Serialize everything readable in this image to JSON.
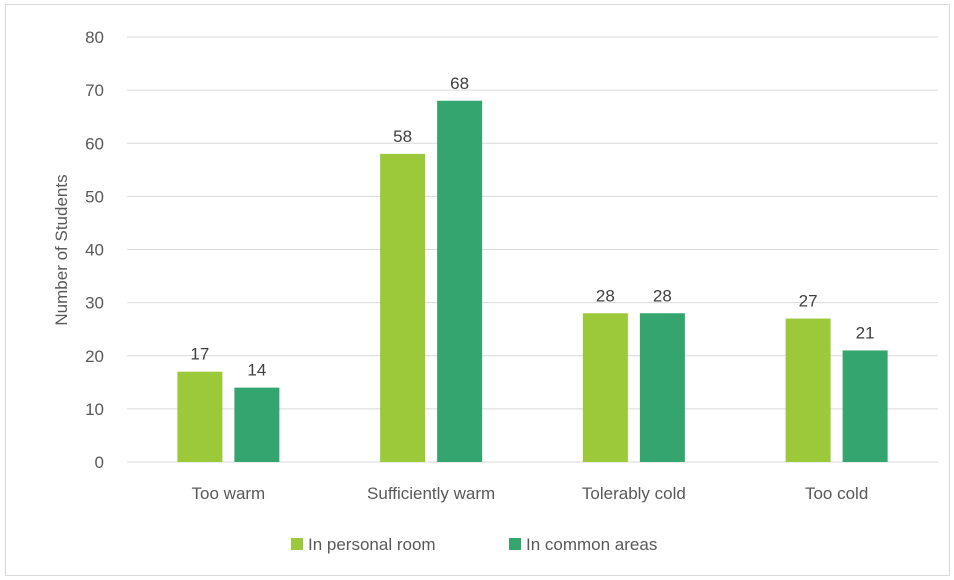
{
  "chart_data": {
    "type": "bar",
    "title": "",
    "xlabel": "",
    "ylabel": "Number  of Students",
    "categories": [
      "Too warm",
      "Sufficiently warm",
      "Tolerably cold",
      "Too cold"
    ],
    "series": [
      {
        "name": "In personal room",
        "values": [
          17,
          58,
          28,
          27
        ],
        "color": "#9BC93A"
      },
      {
        "name": "In common areas",
        "values": [
          14,
          68,
          28,
          21
        ],
        "color": "#35A56F"
      }
    ],
    "ylim": [
      0,
      80
    ],
    "yticks": [
      0,
      10,
      20,
      30,
      40,
      50,
      60,
      70,
      80
    ],
    "grid": true,
    "legend": "bottom-center",
    "data_labels": true
  }
}
